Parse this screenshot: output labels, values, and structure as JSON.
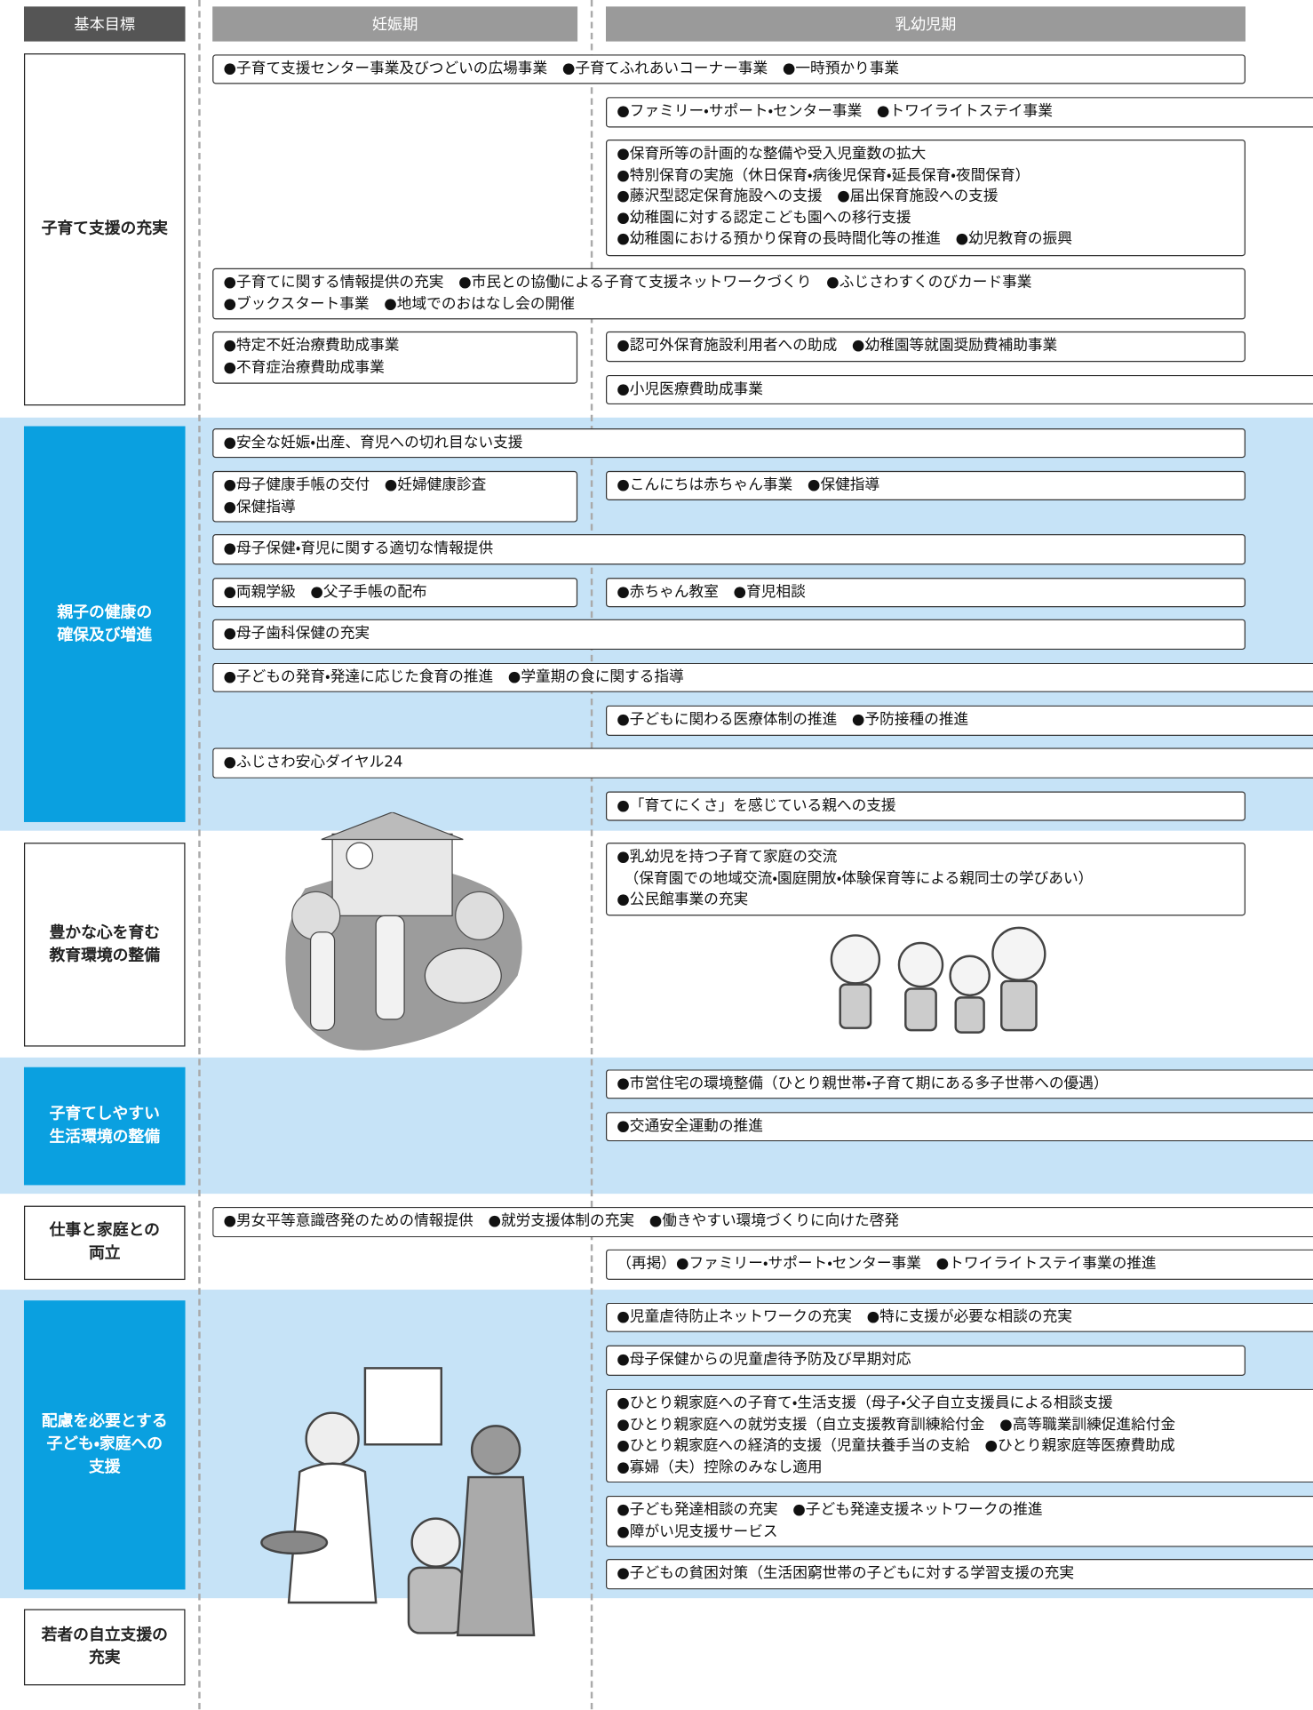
{
  "header": {
    "goal": "基本目標",
    "pregnancy": "妊娠期",
    "infancy": "乳幼児期"
  },
  "sections": [
    {
      "goal": [
        "子育て支援の充実"
      ],
      "items": [
        {
          "lines": [
            "●子育て支援センター事業及びつどいの広場事業　●子育てふれあいコーナー事業　●一時預かり事業"
          ]
        },
        {
          "lines": [
            "●ファミリー・サポート・センター事業　●トワイライトステイ事業"
          ]
        },
        {
          "lines": [
            "●保育所等の計画的な整備や受入児童数の拡大",
            "●特別保育の実施（休日保育・病後児保育・延長保育・夜間保育）",
            "●藤沢型認定保育施設への支援　●届出保育施設への支援",
            "●幼稚園に対する認定こども園への移行支援",
            "●幼稚園における預かり保育の長時間化等の推進　●幼児教育の振興"
          ]
        },
        {
          "lines": [
            "●子育てに関する情報提供の充実　●市民との協働による子育て支援ネットワークづくり　●ふじさわすくのびカード事業",
            "●ブックスタート事業　●地域でのおはなし会の開催"
          ]
        },
        {
          "lines": [
            "●特定不妊治療費助成事業",
            "●不育症治療費助成事業"
          ]
        },
        {
          "lines": [
            "●認可外保育施設利用者への助成　●幼稚園等就園奨励費補助事業"
          ]
        },
        {
          "lines": [
            "●小児医療費助成事業"
          ]
        }
      ]
    },
    {
      "goal": [
        "親子の健康の",
        "確保及び増進"
      ],
      "items": [
        {
          "lines": [
            "●安全な妊娠・出産、育児への切れ目ない支援"
          ]
        },
        {
          "lines": [
            "●母子健康手帳の交付　●妊婦健康診査",
            "●保健指導"
          ]
        },
        {
          "lines": [
            "●こんにちは赤ちゃん事業　●保健指導"
          ]
        },
        {
          "lines": [
            "●母子保健・育児に関する適切な情報提供"
          ]
        },
        {
          "lines": [
            "●両親学級　●父子手帳の配布"
          ]
        },
        {
          "lines": [
            "●赤ちゃん教室　●育児相談"
          ]
        },
        {
          "lines": [
            "●母子歯科保健の充実"
          ]
        },
        {
          "lines": [
            "●子どもの発育・発達に応じた食育の推進　●学童期の食に関する指導"
          ]
        },
        {
          "lines": [
            "●子どもに関わる医療体制の推進　●予防接種の推進"
          ]
        },
        {
          "lines": [
            "●ふじさわ安心ダイヤル24"
          ]
        },
        {
          "lines": [
            "●「育てにくさ」を感じている親への支援"
          ]
        }
      ]
    },
    {
      "goal": [
        "豊かな心を育む",
        "教育環境の整備"
      ],
      "items": [
        {
          "lines": [
            "●乳幼児を持つ子育て家庭の交流",
            "　（保育園での地域交流・園庭開放・体験保育等による親同士の学びあい）",
            "●公民館事業の充実"
          ]
        }
      ]
    },
    {
      "goal": [
        "子育てしやすい",
        "生活環境の整備"
      ],
      "items": [
        {
          "lines": [
            "●市営住宅の環境整備（ひとり親世帯・子育て期にある多子世帯への優遇）"
          ]
        },
        {
          "lines": [
            "●交通安全運動の推進"
          ]
        }
      ]
    },
    {
      "goal": [
        "仕事と家庭との",
        "両立"
      ],
      "items": [
        {
          "lines": [
            "●男女平等意識啓発のための情報提供　●就労支援体制の充実　●働きやすい環境づくりに向けた啓発"
          ]
        },
        {
          "lines": [
            "（再掲）●ファミリー・サポート・センター事業　●トワイライトステイ事業の推進"
          ]
        }
      ]
    },
    {
      "goal": [
        "配慮を必要とする",
        "子ども・家庭への",
        "支援"
      ],
      "items": [
        {
          "lines": [
            "●児童虐待防止ネットワークの充実　●特に支援が必要な相談の充実"
          ]
        },
        {
          "lines": [
            "●母子保健からの児童虐待予防及び早期対応"
          ]
        },
        {
          "lines": [
            "●ひとり親家庭への子育て・生活支援（母子・父子自立支援員による相談支援",
            "●ひとり親家庭への就労支援（自立支援教育訓練給付金　●高等職業訓練促進給付金",
            "●ひとり親家庭への経済的支援（児童扶養手当の支給　●ひとり親家庭等医療費助成",
            "●寡婦（夫）控除のみなし適用"
          ]
        },
        {
          "lines": [
            "●子ども発達相談の充実　●子ども発達支援ネットワークの推進",
            "●障がい児支援サービス"
          ]
        },
        {
          "lines": [
            "●子どもの貧困対策（生活困窮世帯の子どもに対する学習支援の充実"
          ]
        }
      ]
    },
    {
      "goal": [
        "若者の自立支援の",
        "充実"
      ],
      "items": []
    }
  ]
}
